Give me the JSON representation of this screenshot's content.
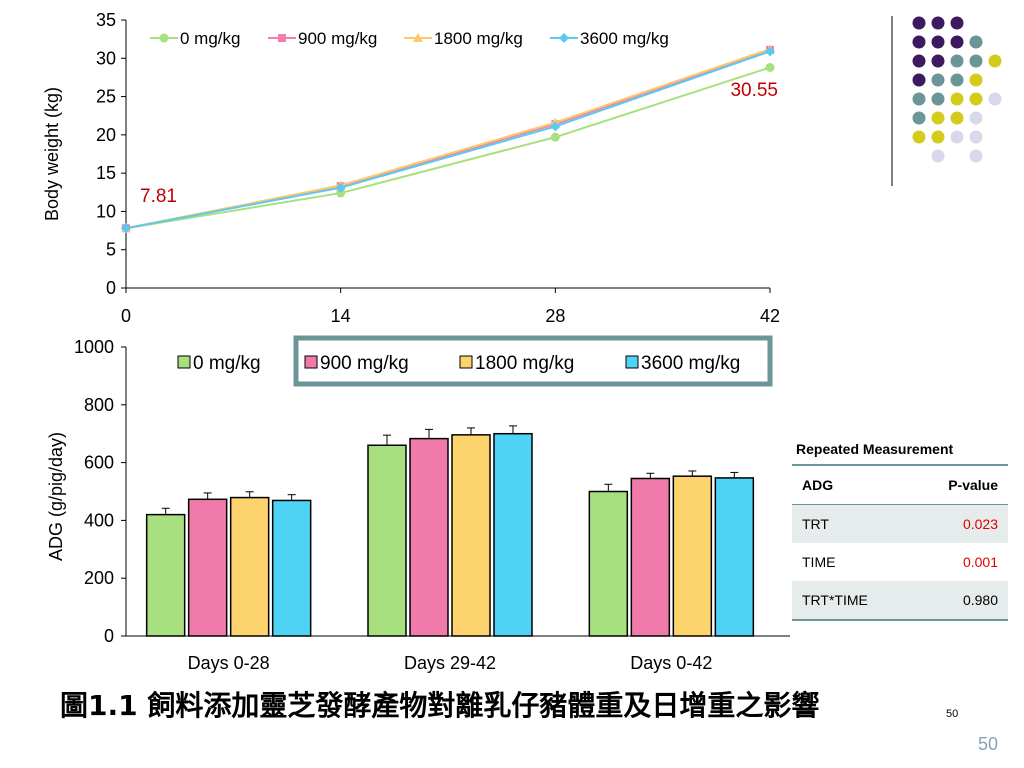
{
  "colors": {
    "s0": "#a8e07f",
    "s900": "#f07bab",
    "s1800": "#fdd36e",
    "s3600": "#4fd3f5",
    "line_s0": "#a8e07f",
    "line_s900": "#f27eb0",
    "line_s1800": "#fdc86a",
    "line_s3600": "#5bc9f2",
    "annotation": "#c00000",
    "pvalue_sig": "#e00000",
    "legend_border": "#6b9597"
  },
  "chart_data": [
    {
      "type": "line",
      "ylabel": "Body weight (kg)",
      "xlabel": "",
      "x": [
        0,
        14,
        28,
        42
      ],
      "ylim": [
        0,
        35
      ],
      "yticks": [
        0,
        5,
        10,
        15,
        20,
        25,
        30,
        35
      ],
      "series": [
        {
          "name": "0 mg/kg",
          "values": [
            7.8,
            12.4,
            19.7,
            28.8
          ],
          "marker": "circle",
          "color_key": "line_s0"
        },
        {
          "name": "900 mg/kg",
          "values": [
            7.8,
            13.3,
            21.4,
            31.1
          ],
          "marker": "square",
          "color_key": "line_s900"
        },
        {
          "name": "1800 mg/kg",
          "values": [
            7.8,
            13.4,
            21.6,
            31.2
          ],
          "marker": "triangle",
          "color_key": "line_s1800"
        },
        {
          "name": "3600 mg/kg",
          "values": [
            7.8,
            13.1,
            21.1,
            30.9
          ],
          "marker": "diamond",
          "color_key": "line_s3600"
        }
      ],
      "annotations": [
        "7.81",
        "30.55"
      ],
      "legend_position": "top"
    },
    {
      "type": "bar",
      "ylabel": "ADG (g/pig/day)",
      "xlabel": "",
      "categories": [
        "Days 0-28",
        "Days 29-42",
        "Days 0-42"
      ],
      "ylim": [
        0,
        1000
      ],
      "yticks": [
        0,
        200,
        400,
        600,
        800,
        1000
      ],
      "series": [
        {
          "name": "0 mg/kg",
          "values": [
            420,
            660,
            500
          ],
          "errors": [
            22,
            35,
            25
          ],
          "color_key": "s0"
        },
        {
          "name": "900 mg/kg",
          "values": [
            473,
            683,
            545
          ],
          "errors": [
            22,
            32,
            18
          ],
          "color_key": "s900"
        },
        {
          "name": "1800 mg/kg",
          "values": [
            479,
            696,
            553
          ],
          "errors": [
            20,
            24,
            18
          ],
          "color_key": "s1800"
        },
        {
          "name": "3600 mg/kg",
          "values": [
            469,
            700,
            547
          ],
          "errors": [
            20,
            27,
            19
          ],
          "color_key": "s3600"
        }
      ],
      "legend_position": "top"
    }
  ],
  "table": {
    "caption": "Repeated Measurement",
    "headers": [
      "ADG",
      "P-value"
    ],
    "rows": [
      {
        "label": "TRT",
        "value": "0.023",
        "significant": true
      },
      {
        "label": "TIME",
        "value": "0.001",
        "significant": true
      },
      {
        "label": "TRT*TIME",
        "value": "0.980",
        "significant": false
      }
    ]
  },
  "caption": {
    "text": "圖1.1 飼料添加靈芝發酵產物對離乳仔豬體重及日增重之影響",
    "page_ref": "50"
  },
  "slide_number": "50",
  "decor_dots": {
    "colors": [
      "#3d1a5e",
      "#6b9597",
      "#d4cc1c",
      "#d8d8ec"
    ]
  }
}
